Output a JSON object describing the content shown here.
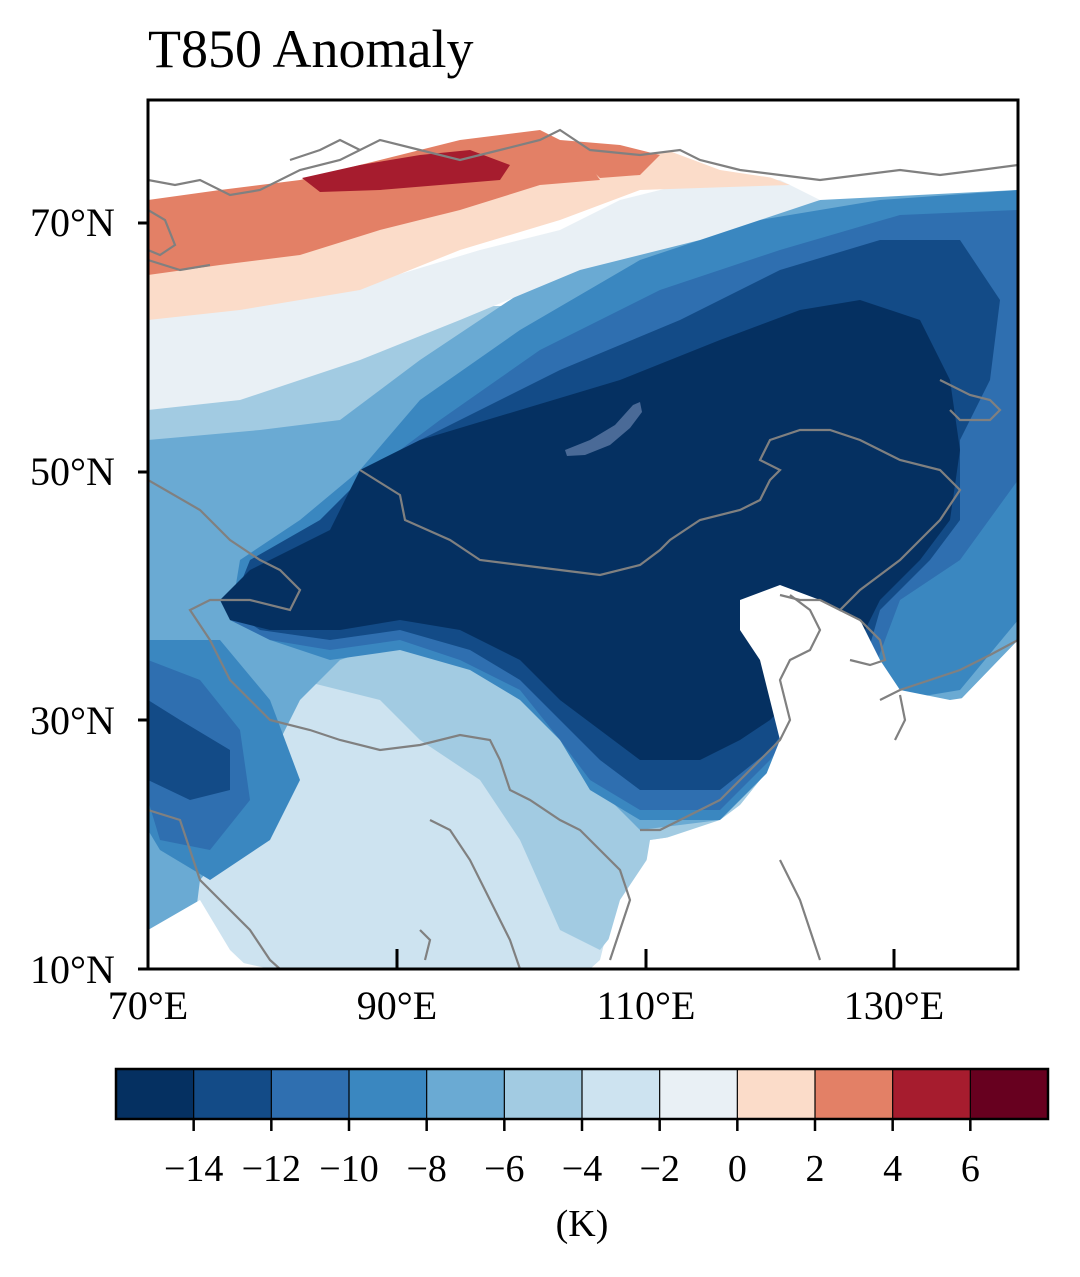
{
  "figure": {
    "title": "T850 Anomaly",
    "lat_ticks": [
      "70°N",
      "50°N",
      "30°N",
      "10°N"
    ],
    "lon_ticks": [
      "70°E",
      "90°E",
      "110°E",
      "130°E"
    ],
    "extent": {
      "lon": [
        70,
        140
      ],
      "lat": [
        10,
        80
      ]
    },
    "map_type": "filled contour",
    "coastline_color": "#808080",
    "no_data_color": "#ffffff"
  },
  "colorbar": {
    "tick_labels": [
      "−14",
      "−12",
      "−10",
      "−8",
      "−6",
      "−4",
      "−2",
      "0",
      "2",
      "4",
      "6"
    ],
    "levels": [
      -16,
      -14,
      -12,
      -10,
      -8,
      -6,
      -4,
      -2,
      0,
      2,
      4,
      6,
      8
    ],
    "colors": [
      "#053061",
      "#134b87",
      "#2f6fb0",
      "#3a87c0",
      "#6aaad3",
      "#a2cbe2",
      "#cde3f0",
      "#e9f0f5",
      "#fbdcc9",
      "#e38066",
      "#a61c2e",
      "#67001f"
    ],
    "unit": "(K)",
    "orientation": "horizontal",
    "placement": "bottom"
  }
}
